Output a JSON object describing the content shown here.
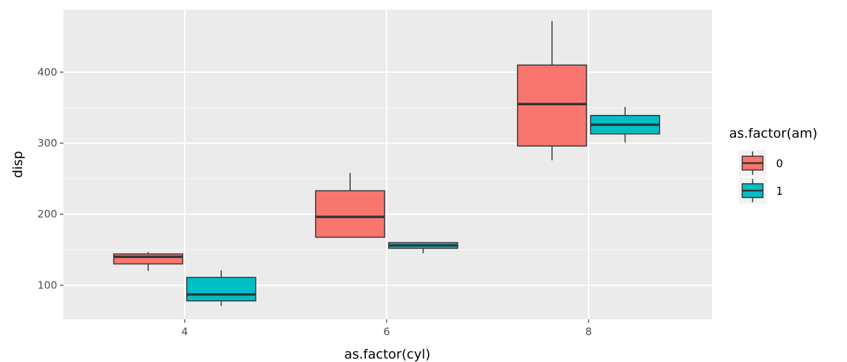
{
  "chart_data": {
    "type": "boxplot",
    "xlabel": "as.factor(cyl)",
    "ylabel": "disp",
    "categories": [
      "4",
      "6",
      "8"
    ],
    "ylim": [
      52,
      488
    ],
    "y_ticks": [
      100,
      200,
      300,
      400
    ],
    "grid": true,
    "legend": {
      "title": "as.factor(am)",
      "position": "right",
      "entries": [
        "0",
        "1"
      ]
    },
    "colors": {
      "panel_background": "#EBEBEB",
      "grid_major": "#FFFFFF",
      "group_0": "#F8766D",
      "group_1": "#00BFC4",
      "outline": "#333333"
    },
    "series": [
      {
        "name": "0",
        "boxes": [
          {
            "category": "4",
            "min": 120.1,
            "q1": 130,
            "median": 140,
            "q3": 144,
            "max": 146.7
          },
          {
            "category": "6",
            "min": 167.6,
            "q1": 167.6,
            "median": 196.3,
            "q3": 233,
            "max": 258
          },
          {
            "category": "8",
            "min": 275.8,
            "q1": 296,
            "median": 355,
            "q3": 410,
            "max": 472
          }
        ]
      },
      {
        "name": "1",
        "boxes": [
          {
            "category": "4",
            "min": 71.1,
            "q1": 78,
            "median": 87,
            "q3": 111,
            "max": 121
          },
          {
            "category": "6",
            "min": 145,
            "q1": 152,
            "median": 156,
            "q3": 160,
            "max": 160
          },
          {
            "category": "8",
            "min": 301,
            "q1": 313,
            "median": 326,
            "q3": 339,
            "max": 351
          }
        ]
      }
    ]
  }
}
